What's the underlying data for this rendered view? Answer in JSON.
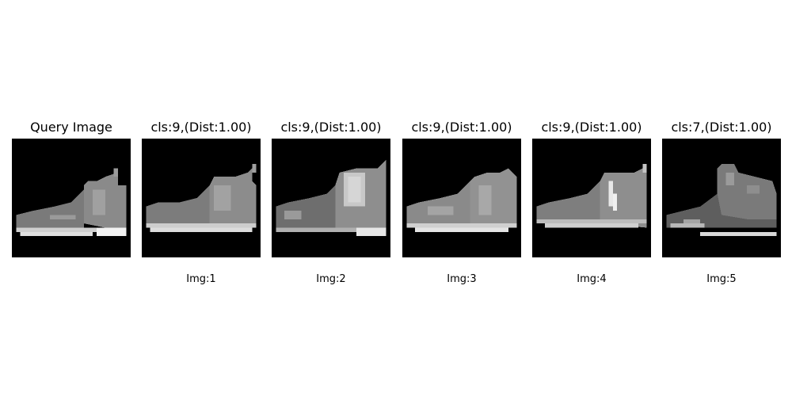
{
  "query": {
    "title": "Query Image"
  },
  "results": [
    {
      "title": "cls:9,(Dist:1.00)",
      "caption": "Img:1"
    },
    {
      "title": "cls:9,(Dist:1.00)",
      "caption": "Img:2"
    },
    {
      "title": "cls:9,(Dist:1.00)",
      "caption": "Img:3"
    },
    {
      "title": "cls:9,(Dist:1.00)",
      "caption": "Img:4"
    },
    {
      "title": "cls:7,(Dist:1.00)",
      "caption": "Img:5"
    }
  ]
}
